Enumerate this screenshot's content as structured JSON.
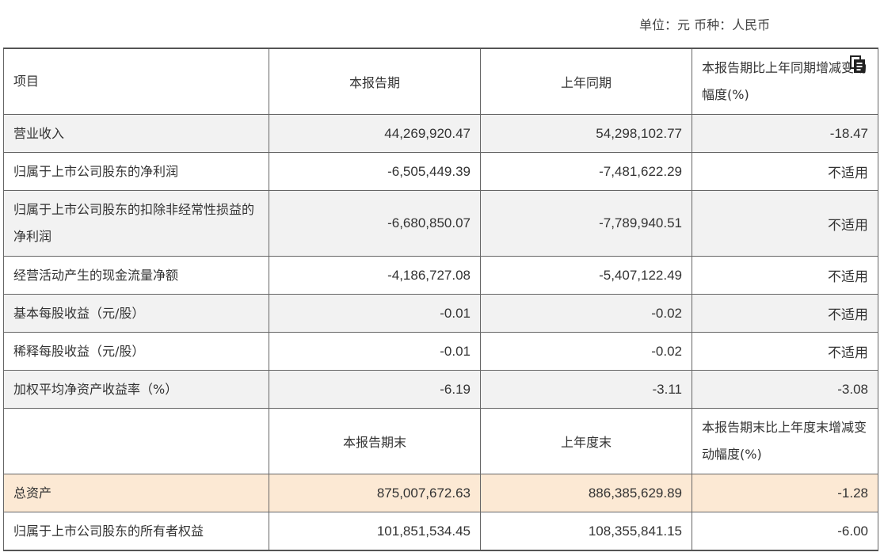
{
  "unit_line": "单位：元 币种：人民币",
  "header1": [
    "项目",
    "本报告期",
    "上年同期",
    "本报告期比上年同期增减变动幅度(%)"
  ],
  "rows1": [
    {
      "label": "营业收入",
      "current": "44,269,920.47",
      "prior": "54,298,102.77",
      "change": "-18.47"
    },
    {
      "label": "归属于上市公司股东的净利润",
      "current": "-6,505,449.39",
      "prior": "-7,481,622.29",
      "change": "不适用"
    },
    {
      "label": "归属于上市公司股东的扣除非经常性损益的净利润",
      "current": "-6,680,850.07",
      "prior": "-7,789,940.51",
      "change": "不适用"
    },
    {
      "label": "经营活动产生的现金流量净额",
      "current": "-4,186,727.08",
      "prior": "-5,407,122.49",
      "change": "不适用"
    },
    {
      "label": "基本每股收益（元/股）",
      "current": "-0.01",
      "prior": "-0.02",
      "change": "不适用"
    },
    {
      "label": "稀释每股收益（元/股）",
      "current": "-0.01",
      "prior": "-0.02",
      "change": "不适用"
    },
    {
      "label": "加权平均净资产收益率（%）",
      "current": "-6.19",
      "prior": "-3.11",
      "change": "-3.08"
    }
  ],
  "header2": [
    "",
    "本报告期末",
    "上年度末",
    "本报告期末比上年度末增减变动幅度(%)"
  ],
  "rows2": [
    {
      "label": "总资产",
      "current": "875,007,672.63",
      "prior": "886,385,629.89",
      "change": "-1.28"
    },
    {
      "label": "归属于上市公司股东的所有者权益",
      "current": "101,851,534.45",
      "prior": "108,355,841.15",
      "change": "-6.00"
    }
  ],
  "icons": {
    "copy": "copy-icon"
  },
  "colors": {
    "shade": "#f2f2f2",
    "highlight": "#fce9d4",
    "border": "#666666"
  }
}
